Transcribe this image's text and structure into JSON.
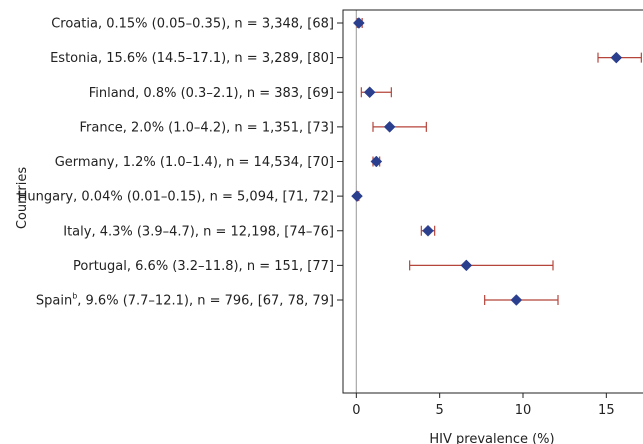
{
  "chart_data": {
    "type": "scatter",
    "title": "",
    "xlabel": "HIV prevalence (%)",
    "ylabel": "Countries",
    "xlim": [
      -0.8,
      17.2
    ],
    "xticks": [
      0,
      5,
      10,
      15
    ],
    "grid": false,
    "categories": [
      {
        "name": "Croatia",
        "sup": "",
        "rest": ", 0.15% (0.05–0.35), n = 3,348, [68]"
      },
      {
        "name": "Estonia",
        "sup": "",
        "rest": ", 15.6% (14.5–17.1), n = 3,289, [80]"
      },
      {
        "name": "Finland",
        "sup": "",
        "rest": ", 0.8% (0.3–2.1), n = 383, [69]"
      },
      {
        "name": "France",
        "sup": "",
        "rest": ", 2.0% (1.0–4.2), n = 1,351, [73]"
      },
      {
        "name": "Germany",
        "sup": "",
        "rest": ", 1.2% (1.0–1.4), n = 14,534, [70]"
      },
      {
        "name": "Hungary",
        "sup": "",
        "rest": ", 0.04% (0.01–0.15), n = 5,094, [71, 72]"
      },
      {
        "name": "Italy",
        "sup": "",
        "rest": ", 4.3% (3.9–4.7), n = 12,198, [74–76]"
      },
      {
        "name": "Portugal",
        "sup": "",
        "rest": ", 6.6% (3.2–11.8), n = 151, [77]"
      },
      {
        "name": "Spain",
        "sup": "b",
        "rest": ",  9.6% (7.7–12.1), n = 796, [67, 78, 79]"
      }
    ],
    "series": [
      {
        "values": [
          0.15,
          15.6,
          0.8,
          2.0,
          1.2,
          0.04,
          4.3,
          6.6,
          9.6
        ],
        "ci_low": [
          0.05,
          14.5,
          0.3,
          1.0,
          1.0,
          0.01,
          3.9,
          3.2,
          7.7
        ],
        "ci_high": [
          0.35,
          17.1,
          2.1,
          4.2,
          1.4,
          0.15,
          4.7,
          11.8,
          12.1
        ]
      }
    ],
    "reference_line_x": 0,
    "colors": {
      "marker": "#2b3f8f",
      "error_bar": "#b5443a",
      "reference_line": "#a8a8a8",
      "axis": "#222222"
    }
  }
}
